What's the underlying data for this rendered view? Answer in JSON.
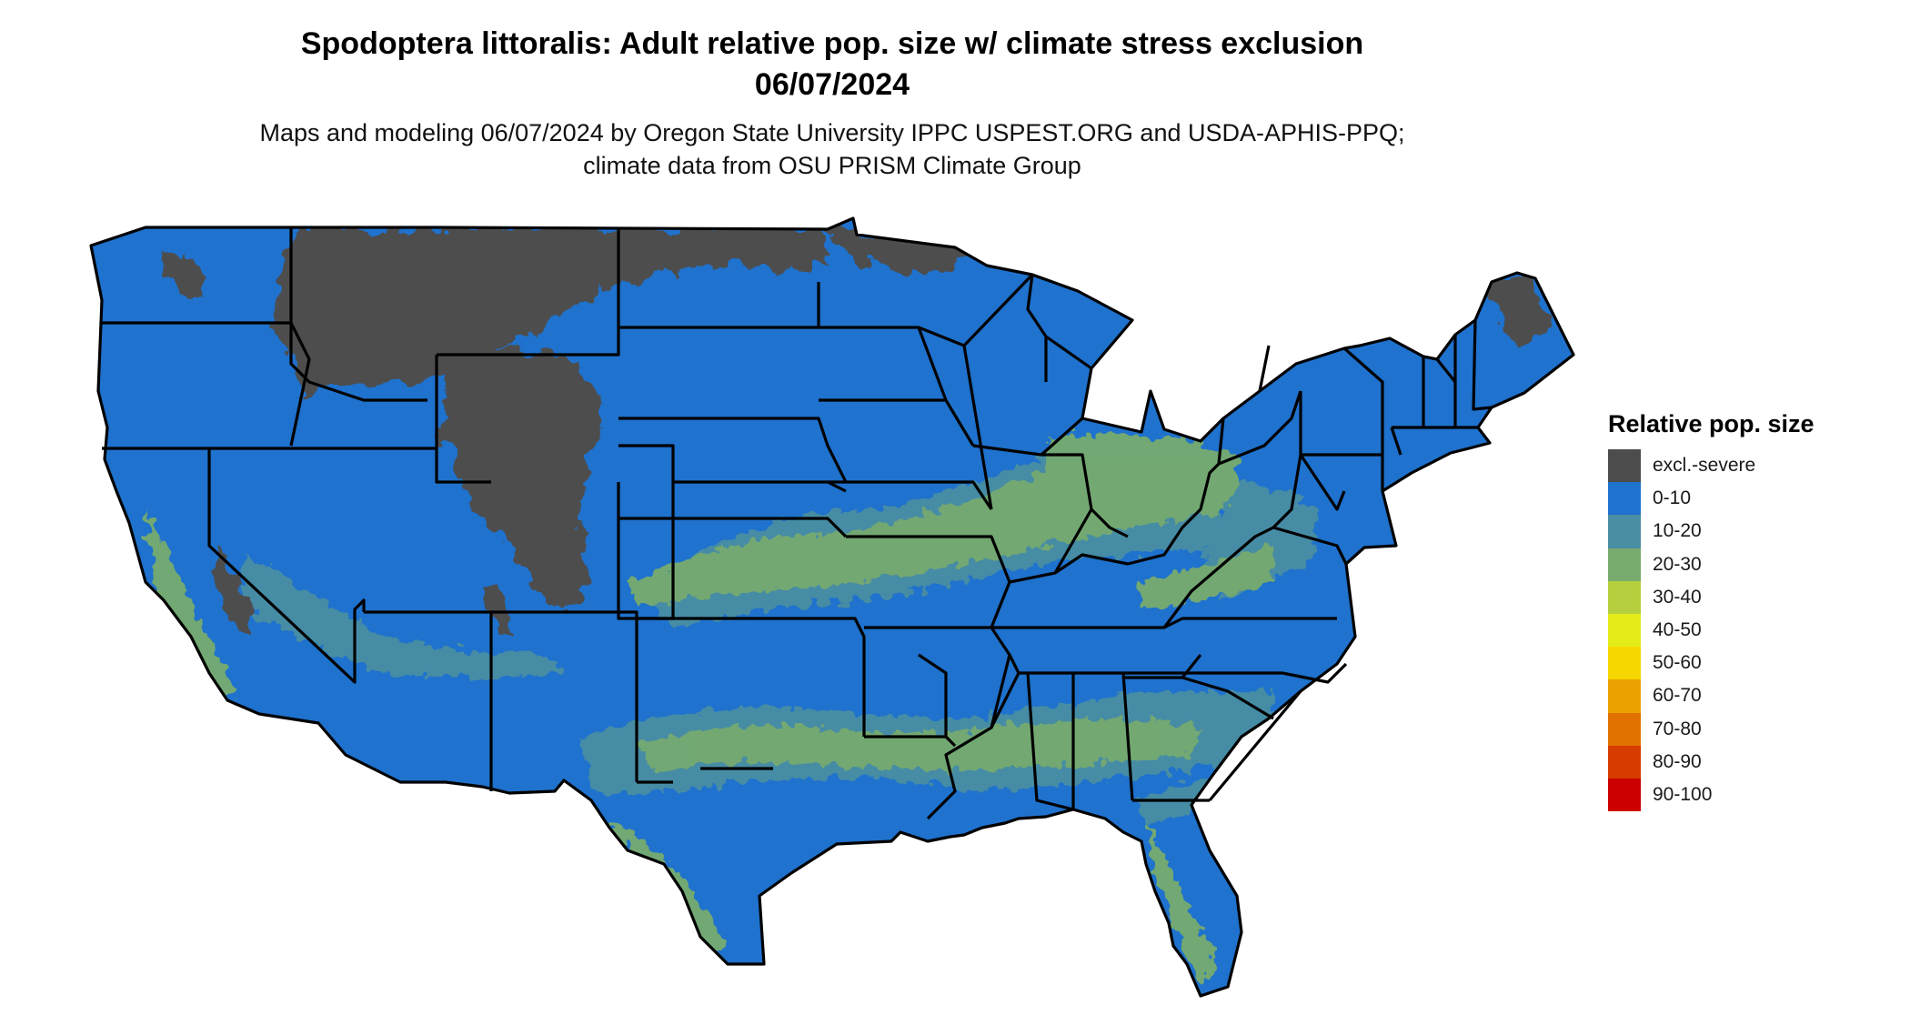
{
  "title": "Spodoptera littoralis: Adult relative pop. size w/ climate stress exclusion 06/07/2024",
  "subtitle": "Maps and modeling 06/07/2024 by Oregon State University IPPC USPEST.ORG and USDA-APHIS-PPQ; climate data from OSU PRISM Climate Group",
  "legend": {
    "title": "Relative pop. size",
    "items": [
      {
        "label": "excl.-severe",
        "color": "#4d4d4d"
      },
      {
        "label": "0-10",
        "color": "#1f72cd"
      },
      {
        "label": "10-20",
        "color": "#4a8ea3"
      },
      {
        "label": "20-30",
        "color": "#78ab6e"
      },
      {
        "label": "30-40",
        "color": "#b6cf3e"
      },
      {
        "label": "40-50",
        "color": "#e4eb17"
      },
      {
        "label": "50-60",
        "color": "#f6d800"
      },
      {
        "label": "60-70",
        "color": "#eaa200"
      },
      {
        "label": "70-80",
        "color": "#e27200"
      },
      {
        "label": "80-90",
        "color": "#d63b00"
      },
      {
        "label": "90-100",
        "color": "#cc0000"
      }
    ]
  },
  "map": {
    "region": "Contiguous United States",
    "base_color": "#1f72cd",
    "boundary_color": "#000000"
  }
}
